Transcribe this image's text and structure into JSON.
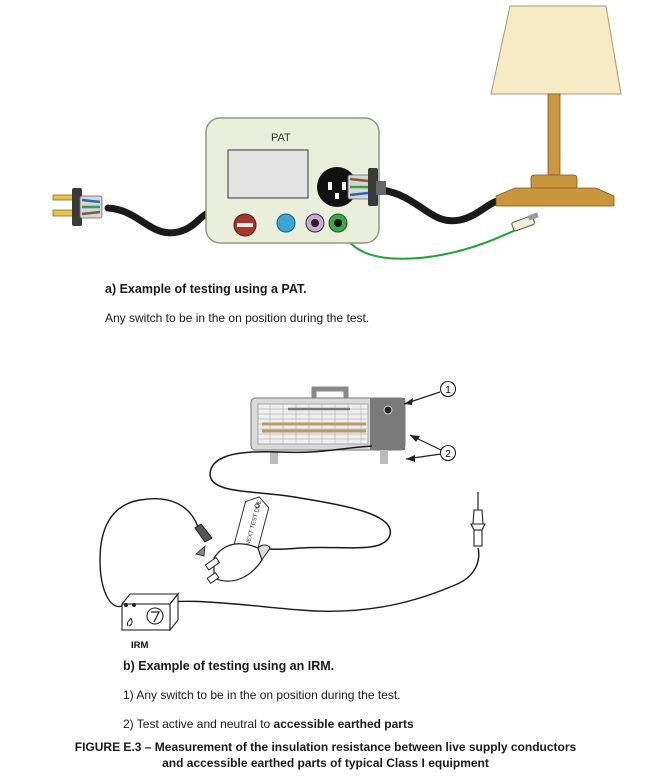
{
  "diagram_a": {
    "device_label": "PAT",
    "caption_title": "a) Example of testing using a PAT.",
    "caption_note": "Any switch to be in the on position during the test."
  },
  "diagram_b": {
    "meter_label": "IRM",
    "callout_1": "1",
    "callout_2": "2",
    "tag_text": "NEXT TEST DUE",
    "caption_title": "b) Example of testing using an IRM.",
    "note_1": "1) Any switch to be in the on position during the test.",
    "note_2_prefix": "2) Test active and neutral to ",
    "note_2_bold": "accessible earthed parts"
  },
  "figure_caption": {
    "line_1": "FIGURE E.3 – Measurement of the insulation resistance between live supply conductors",
    "line_2": "and accessible earthed parts of typical Class I equipment"
  }
}
